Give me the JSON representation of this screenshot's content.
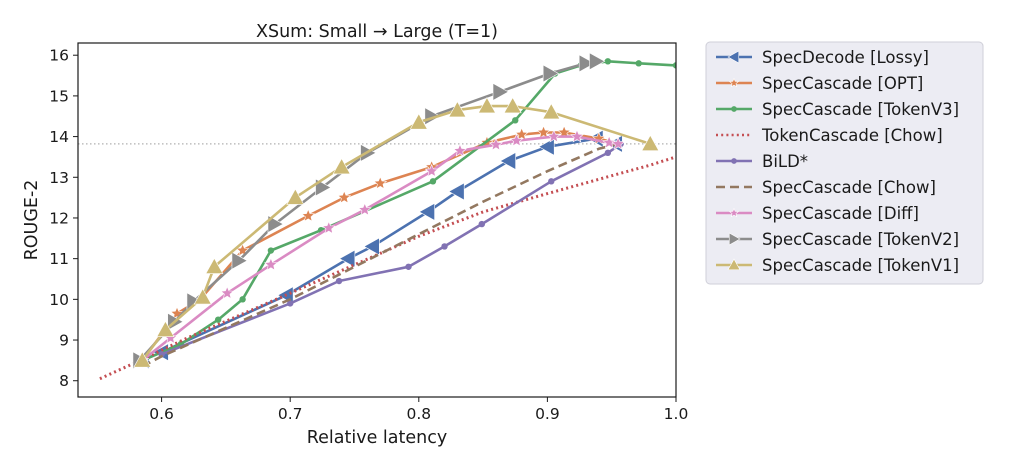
{
  "chart_data": {
    "type": "line",
    "title": "XSum:  Small → Large   (T=1)",
    "xlabel": "Relative latency",
    "ylabel": "ROUGE-2",
    "xlim": [
      0.535,
      1.0
    ],
    "ylim": [
      7.6,
      16.3
    ],
    "xticks": [
      "0.6",
      "0.7",
      "0.8",
      "0.9",
      "1.0"
    ],
    "xtick_values": [
      0.6,
      0.7,
      0.8,
      0.9,
      1.0
    ],
    "yticks": [
      "8",
      "9",
      "10",
      "11",
      "12",
      "13",
      "14",
      "15",
      "16"
    ],
    "ytick_values": [
      8,
      9,
      10,
      11,
      12,
      13,
      14,
      15,
      16
    ],
    "grid": false,
    "legend_position": "outside-right",
    "reference_line": {
      "y": 13.82,
      "style": "dotted",
      "color": "#b0b0b0"
    },
    "series": [
      {
        "name": "SpecDecode [Lossy]",
        "color": "#4c72b0",
        "marker": "triangle-left",
        "style": "solid",
        "x": [
          0.585,
          0.6,
          0.697,
          0.745,
          0.764,
          0.807,
          0.83,
          0.87,
          0.9,
          0.938,
          0.953
        ],
        "y": [
          8.5,
          8.7,
          10.1,
          11.0,
          11.3,
          12.15,
          12.65,
          13.4,
          13.75,
          13.95,
          13.82
        ]
      },
      {
        "name": "SpecCascade [OPT]",
        "color": "#dd8452",
        "marker": "star",
        "style": "solid",
        "x": [
          0.585,
          0.612,
          0.63,
          0.663,
          0.714,
          0.742,
          0.77,
          0.81,
          0.853,
          0.88,
          0.897,
          0.913,
          0.94,
          0.955
        ],
        "y": [
          8.5,
          9.65,
          10.0,
          11.2,
          12.05,
          12.5,
          12.85,
          13.25,
          13.85,
          14.05,
          14.1,
          14.1,
          13.95,
          13.82
        ]
      },
      {
        "name": "SpecCascade [TokenV3]",
        "color": "#55a868",
        "marker": "dot",
        "style": "solid",
        "x": [
          0.585,
          0.615,
          0.644,
          0.663,
          0.685,
          0.724,
          0.811,
          0.875,
          0.906,
          0.926,
          0.947,
          0.971,
          1.0
        ],
        "y": [
          8.5,
          8.9,
          9.5,
          10.0,
          11.2,
          11.7,
          12.9,
          14.4,
          15.55,
          15.75,
          15.85,
          15.8,
          15.75
        ]
      },
      {
        "name": "TokenCascade [Chow]",
        "color": "#c44e52",
        "marker": "none",
        "style": "dotted",
        "x": [
          0.552,
          0.58,
          0.62,
          0.66,
          0.7,
          0.75,
          0.8,
          0.85,
          0.9,
          0.94,
          0.98,
          1.0
        ],
        "y": [
          8.05,
          8.45,
          9.05,
          9.6,
          10.15,
          10.85,
          11.55,
          12.15,
          12.6,
          12.95,
          13.3,
          13.5
        ]
      },
      {
        "name": "BiLD*",
        "color": "#8172b3",
        "marker": "dot",
        "style": "solid",
        "x": [
          0.6,
          0.7,
          0.738,
          0.792,
          0.82,
          0.849,
          0.903,
          0.947,
          0.957
        ],
        "y": [
          8.65,
          9.9,
          10.45,
          10.8,
          11.3,
          11.85,
          12.9,
          13.6,
          13.82
        ]
      },
      {
        "name": "SpecCascade [Chow]",
        "color": "#937860",
        "marker": "none",
        "style": "dashed",
        "x": [
          0.585,
          0.6,
          0.65,
          0.7,
          0.75,
          0.8,
          0.85,
          0.9,
          0.94,
          0.955
        ],
        "y": [
          8.35,
          8.6,
          9.3,
          10.0,
          10.8,
          11.6,
          12.4,
          13.15,
          13.7,
          13.82
        ]
      },
      {
        "name": "SpecCascade [Diff]",
        "color": "#da8bc3",
        "marker": "star",
        "style": "solid",
        "x": [
          0.585,
          0.607,
          0.651,
          0.685,
          0.73,
          0.758,
          0.81,
          0.832,
          0.86,
          0.876,
          0.905,
          0.923,
          0.948,
          0.955
        ],
        "y": [
          8.5,
          9.05,
          10.15,
          10.85,
          11.75,
          12.2,
          13.15,
          13.65,
          13.8,
          13.9,
          14.0,
          14.0,
          13.85,
          13.82
        ]
      },
      {
        "name": "SpecCascade [TokenV2]",
        "color": "#8c8c8c",
        "marker": "triangle-right",
        "style": "solid",
        "x": [
          0.583,
          0.61,
          0.625,
          0.66,
          0.688,
          0.725,
          0.76,
          0.81,
          0.863,
          0.902,
          0.93,
          0.938
        ],
        "y": [
          8.5,
          9.45,
          9.95,
          10.95,
          11.85,
          12.75,
          13.6,
          14.5,
          15.1,
          15.55,
          15.8,
          15.85
        ]
      },
      {
        "name": "SpecCascade [TokenV1]",
        "color": "#ccb974",
        "marker": "triangle-up",
        "style": "solid",
        "x": [
          0.585,
          0.603,
          0.632,
          0.641,
          0.704,
          0.74,
          0.8,
          0.83,
          0.853,
          0.873,
          0.903,
          0.98
        ],
        "y": [
          8.5,
          9.25,
          10.05,
          10.8,
          12.5,
          13.25,
          14.35,
          14.65,
          14.75,
          14.75,
          14.6,
          13.82
        ]
      }
    ]
  }
}
